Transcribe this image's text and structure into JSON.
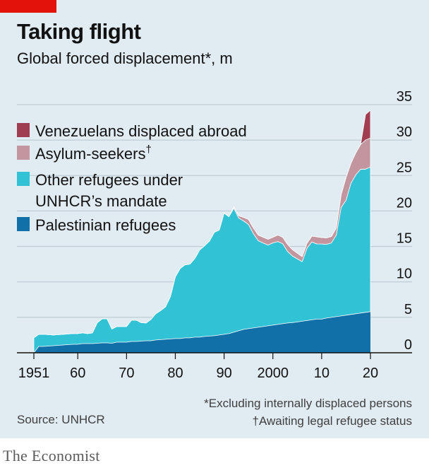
{
  "header": {
    "title": "Taking flight",
    "subtitle": "Global forced displacement*, m"
  },
  "footnotes": {
    "note1": "*Excluding internally displaced persons",
    "note2": "†Awaiting legal refugee status",
    "source": "Source: UNHCR"
  },
  "brand": "The Economist",
  "colors": {
    "background": "#e0ebf2",
    "venezuelans": "#a13d50",
    "asylum": "#c3969f",
    "other_refugees": "#31c2d6",
    "palestinian": "#1270a8",
    "accent": "#e3120b"
  },
  "chart_data": {
    "type": "area",
    "stacked": true,
    "title": "Taking flight",
    "subtitle": "Global forced displacement*, m",
    "y_axis_side": "right",
    "grid": true,
    "legend_position": "top-left",
    "ylim": [
      0,
      35
    ],
    "yticks": [
      0,
      5,
      10,
      15,
      20,
      25,
      30,
      35
    ],
    "xlim": [
      1951,
      2020
    ],
    "xticks": [
      {
        "value": 1951,
        "label": "1951"
      },
      {
        "value": 1960,
        "label": "60"
      },
      {
        "value": 1970,
        "label": "70"
      },
      {
        "value": 1980,
        "label": "80"
      },
      {
        "value": 1990,
        "label": "90"
      },
      {
        "value": 2000,
        "label": "2000"
      },
      {
        "value": 2010,
        "label": "10"
      },
      {
        "value": 2020,
        "label": "20"
      }
    ],
    "x": [
      1951,
      1952,
      1953,
      1955,
      1957,
      1959,
      1960,
      1961,
      1962,
      1963,
      1964,
      1965,
      1966,
      1967,
      1968,
      1970,
      1971,
      1972,
      1973,
      1974,
      1975,
      1976,
      1977,
      1978,
      1979,
      1980,
      1981,
      1982,
      1983,
      1984,
      1985,
      1986,
      1987,
      1988,
      1989,
      1990,
      1991,
      1992,
      1993,
      1994,
      1995,
      1996,
      1997,
      1998,
      1999,
      2000,
      2001,
      2002,
      2003,
      2004,
      2005,
      2006,
      2007,
      2008,
      2009,
      2010,
      2011,
      2012,
      2013,
      2014,
      2015,
      2016,
      2017,
      2018,
      2019,
      2020
    ],
    "series": [
      {
        "name": "Palestinian refugees",
        "color": "#1270a8",
        "values": [
          0.0,
          0.9,
          0.9,
          1.0,
          1.1,
          1.2,
          1.2,
          1.3,
          1.3,
          1.3,
          1.35,
          1.4,
          1.4,
          1.35,
          1.5,
          1.5,
          1.6,
          1.6,
          1.65,
          1.7,
          1.7,
          1.8,
          1.85,
          1.9,
          1.95,
          2.0,
          2.0,
          2.1,
          2.1,
          2.2,
          2.2,
          2.3,
          2.35,
          2.4,
          2.5,
          2.6,
          2.7,
          2.9,
          3.1,
          3.3,
          3.4,
          3.5,
          3.6,
          3.7,
          3.8,
          3.9,
          4.0,
          4.1,
          4.2,
          4.25,
          4.35,
          4.45,
          4.55,
          4.65,
          4.75,
          4.75,
          4.9,
          5.0,
          5.1,
          5.2,
          5.3,
          5.4,
          5.5,
          5.6,
          5.7,
          5.8
        ]
      },
      {
        "name": "Other refugees under UNHCR’s mandate",
        "color": "#31c2d6",
        "values": [
          2.1,
          1.7,
          1.7,
          1.5,
          1.5,
          1.5,
          1.5,
          1.5,
          1.4,
          1.5,
          2.9,
          3.4,
          3.4,
          2.0,
          2.2,
          2.2,
          3.0,
          3.0,
          2.6,
          2.5,
          3.0,
          3.7,
          4.1,
          4.6,
          6.0,
          8.7,
          9.9,
          10.3,
          10.4,
          11.1,
          12.3,
          12.8,
          13.4,
          14.6,
          14.8,
          17.1,
          16.5,
          17.5,
          15.9,
          15.3,
          14.7,
          13.3,
          12.2,
          11.8,
          11.4,
          11.6,
          11.7,
          11.3,
          10.1,
          9.4,
          8.9,
          8.4,
          10.2,
          11.0,
          10.6,
          10.6,
          10.4,
          10.5,
          11.5,
          15.3,
          16.2,
          18.5,
          19.6,
          20.3,
          20.2,
          20.4
        ]
      },
      {
        "name": "Asylum-seekers†",
        "color": "#c3969f",
        "values": [
          0,
          0,
          0,
          0,
          0,
          0,
          0,
          0,
          0,
          0,
          0,
          0,
          0,
          0,
          0,
          0,
          0,
          0,
          0,
          0,
          0,
          0,
          0,
          0,
          0,
          0,
          0,
          0,
          0,
          0,
          0,
          0,
          0,
          0,
          0,
          0,
          0,
          0.2,
          0.3,
          0.5,
          0.7,
          0.8,
          0.8,
          0.8,
          0.8,
          0.8,
          0.9,
          0.9,
          1.0,
          0.9,
          0.8,
          0.7,
          0.7,
          0.8,
          1.0,
          0.9,
          0.9,
          0.9,
          1.0,
          1.8,
          3.2,
          2.8,
          3.1,
          3.5,
          4.1,
          4.1
        ]
      },
      {
        "name": "Venezuelans displaced abroad",
        "color": "#a13d50",
        "values": [
          0,
          0,
          0,
          0,
          0,
          0,
          0,
          0,
          0,
          0,
          0,
          0,
          0,
          0,
          0,
          0,
          0,
          0,
          0,
          0,
          0,
          0,
          0,
          0,
          0,
          0,
          0,
          0,
          0,
          0,
          0,
          0,
          0,
          0,
          0,
          0,
          0,
          0,
          0,
          0,
          0,
          0,
          0,
          0,
          0,
          0,
          0,
          0,
          0,
          0,
          0,
          0,
          0,
          0,
          0,
          0,
          0,
          0,
          0,
          0,
          0,
          0,
          0,
          0,
          3.6,
          3.9
        ]
      }
    ],
    "legend": [
      {
        "label": "Venezuelans displaced abroad",
        "color": "#a13d50"
      },
      {
        "label": "Asylum-seekers",
        "sup": "†",
        "color": "#c3969f"
      },
      {
        "label": "Other refugees under",
        "label2": "UNHCR’s mandate",
        "color": "#31c2d6"
      },
      {
        "label": "Palestinian refugees",
        "color": "#1270a8"
      }
    ]
  }
}
